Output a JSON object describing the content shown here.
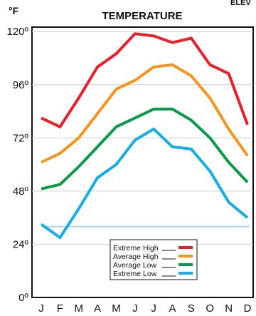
{
  "corner_text": "ELEV",
  "chart_data": {
    "type": "line",
    "title": "TEMPERATURE",
    "y_unit": "°F",
    "categories": [
      "J",
      "F",
      "M",
      "A",
      "M",
      "J",
      "J",
      "A",
      "S",
      "O",
      "N",
      "D"
    ],
    "ylim": [
      0,
      122
    ],
    "y_ticks": [
      0,
      24,
      48,
      72,
      96,
      120
    ],
    "y_tick_labels": [
      "0º",
      "24º",
      "48º",
      "72º",
      "96º",
      "120º"
    ],
    "grid": true,
    "legend_position": "bottom-center",
    "series": [
      {
        "name": "Extreme High",
        "color": "#e8202a",
        "values": [
          81,
          77,
          90,
          104,
          110,
          119,
          118,
          115,
          117,
          105,
          101,
          78
        ]
      },
      {
        "name": "Average High",
        "color": "#f7941d",
        "values": [
          61,
          65,
          72,
          83,
          94,
          98,
          104,
          105,
          100,
          90,
          76,
          64
        ]
      },
      {
        "name": "Average Low",
        "color": "#0b9a48",
        "values": [
          49,
          51,
          59,
          68,
          77,
          81,
          85,
          85,
          80,
          72,
          61,
          52
        ]
      },
      {
        "name": "Extreme Low",
        "color": "#17aee3",
        "values": [
          33,
          27,
          40,
          54,
          60,
          71,
          76,
          68,
          67,
          57,
          43,
          36
        ]
      }
    ],
    "reference_line": {
      "value": 32,
      "color": "#a8d8f0"
    }
  }
}
